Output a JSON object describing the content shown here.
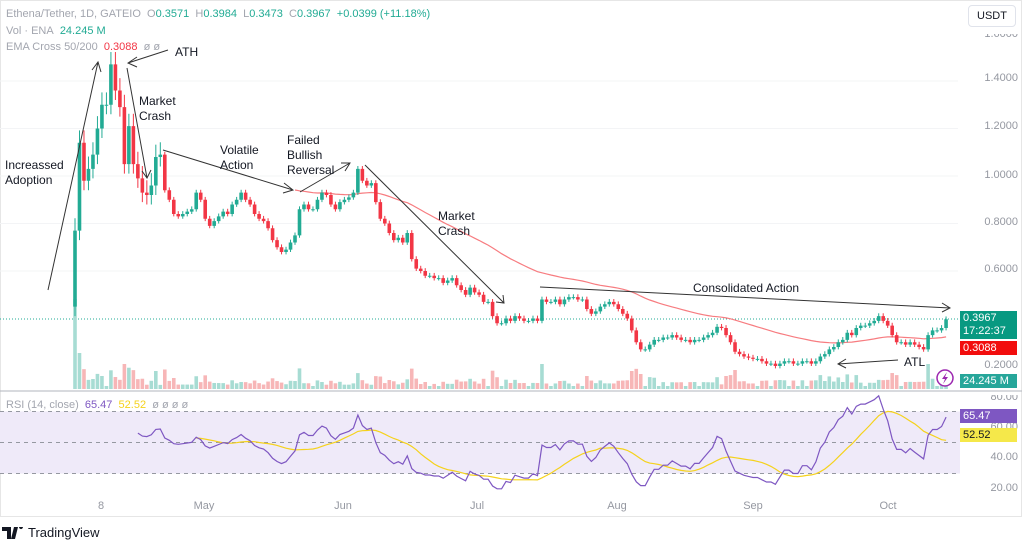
{
  "header": {
    "symbol": "Ethena/Tether, 1D, GATEIO",
    "open_label": "O",
    "open": "0.3571",
    "high_label": "H",
    "high": "0.3984",
    "low_label": "L",
    "low": "0.3473",
    "close_label": "C",
    "close": "0.3967",
    "change": "+0.0399 (+11.18%)",
    "vol_label": "Vol · ENA",
    "vol_value": "24.245 M",
    "ema_label": "EMA Cross 50/200",
    "ema_value": "0.3088",
    "ema_extra": "ø ø"
  },
  "rsi_legend": {
    "label": "RSI (14, close)",
    "rsi": "65.47",
    "ma": "52.52",
    "extra": "ø ø ø ø"
  },
  "currency_button": "USDT",
  "price_axis": [
    "1.6000",
    "1.4000",
    "1.2000",
    "1.0000",
    "0.8000",
    "0.6000",
    "0.2000"
  ],
  "rsi_axis": [
    "80.00",
    "60.00",
    "40.00",
    "20.00"
  ],
  "tags": {
    "last_price": "0.3967",
    "countdown": "17:22:37",
    "ema": "0.3088",
    "volume": "24.245 M",
    "rsi": "65.47",
    "rsi_ma": "52.52"
  },
  "time_axis": [
    "8",
    "May",
    "Jun",
    "Jul",
    "Aug",
    "Sep",
    "Oct"
  ],
  "annotations": {
    "adoption": [
      "Increassed",
      "Adoption"
    ],
    "ath": "ATH",
    "crash1": [
      "Market",
      "Crash"
    ],
    "volatile": [
      "Volatile",
      "Action"
    ],
    "failed": [
      "Failed",
      "Bullish",
      "Reversal"
    ],
    "crash2": [
      "Market",
      "Crash"
    ],
    "consolidated": "Consolidated Action",
    "atl": "ATL"
  },
  "branding": "TradingView",
  "colors": {
    "up": "#22ab94",
    "down": "#f23645",
    "ema": "#f77c80",
    "rsi": "#7e57c2",
    "rsi_ma": "#f5d21c",
    "rsi_band": "#efeaf9"
  },
  "chart_data": {
    "type": "candlestick",
    "interval": "1D",
    "first_date": "2024-04-02",
    "ylim": [
      0.15,
      1.6
    ],
    "rsi_ylim": [
      15,
      85
    ],
    "rsi_levels": [
      70,
      50,
      30
    ],
    "indicators": [
      "Volume",
      "EMA 50",
      "RSI 14 with MA"
    ],
    "first_open": 0.45,
    "closes": [
      0.77,
      1.14,
      0.98,
      1.03,
      1.09,
      1.2,
      1.3,
      1.3,
      1.47,
      1.36,
      1.29,
      1.05,
      1.21,
      1.05,
      0.99,
      0.93,
      0.92,
      0.96,
      1.08,
      1.09,
      0.94,
      0.9,
      0.84,
      0.83,
      0.84,
      0.85,
      0.86,
      0.93,
      0.9,
      0.82,
      0.79,
      0.81,
      0.83,
      0.85,
      0.84,
      0.88,
      0.9,
      0.93,
      0.9,
      0.88,
      0.84,
      0.82,
      0.81,
      0.78,
      0.73,
      0.7,
      0.68,
      0.69,
      0.72,
      0.75,
      0.86,
      0.88,
      0.86,
      0.86,
      0.9,
      0.93,
      0.92,
      0.88,
      0.86,
      0.89,
      0.9,
      0.91,
      0.93,
      1.03,
      0.98,
      0.96,
      0.97,
      0.89,
      0.82,
      0.8,
      0.76,
      0.73,
      0.74,
      0.72,
      0.76,
      0.65,
      0.61,
      0.6,
      0.58,
      0.58,
      0.57,
      0.57,
      0.55,
      0.56,
      0.57,
      0.54,
      0.52,
      0.5,
      0.53,
      0.51,
      0.5,
      0.47,
      0.47,
      0.41,
      0.38,
      0.38,
      0.4,
      0.39,
      0.41,
      0.4,
      0.39,
      0.39,
      0.4,
      0.39,
      0.48,
      0.47,
      0.47,
      0.48,
      0.46,
      0.48,
      0.49,
      0.49,
      0.48,
      0.48,
      0.44,
      0.42,
      0.43,
      0.45,
      0.46,
      0.47,
      0.46,
      0.44,
      0.42,
      0.4,
      0.35,
      0.3,
      0.27,
      0.27,
      0.29,
      0.31,
      0.31,
      0.32,
      0.32,
      0.33,
      0.32,
      0.31,
      0.31,
      0.3,
      0.31,
      0.31,
      0.32,
      0.33,
      0.34,
      0.365,
      0.36,
      0.33,
      0.3,
      0.26,
      0.25,
      0.24,
      0.235,
      0.23,
      0.23,
      0.22,
      0.21,
      0.21,
      0.2,
      0.21,
      0.22,
      0.22,
      0.21,
      0.21,
      0.22,
      0.22,
      0.21,
      0.22,
      0.24,
      0.25,
      0.27,
      0.28,
      0.3,
      0.31,
      0.34,
      0.33,
      0.36,
      0.37,
      0.37,
      0.38,
      0.39,
      0.41,
      0.39,
      0.37,
      0.33,
      0.3,
      0.3,
      0.29,
      0.3,
      0.29,
      0.28,
      0.27,
      0.33,
      0.35,
      0.35,
      0.36,
      0.3967
    ]
  }
}
